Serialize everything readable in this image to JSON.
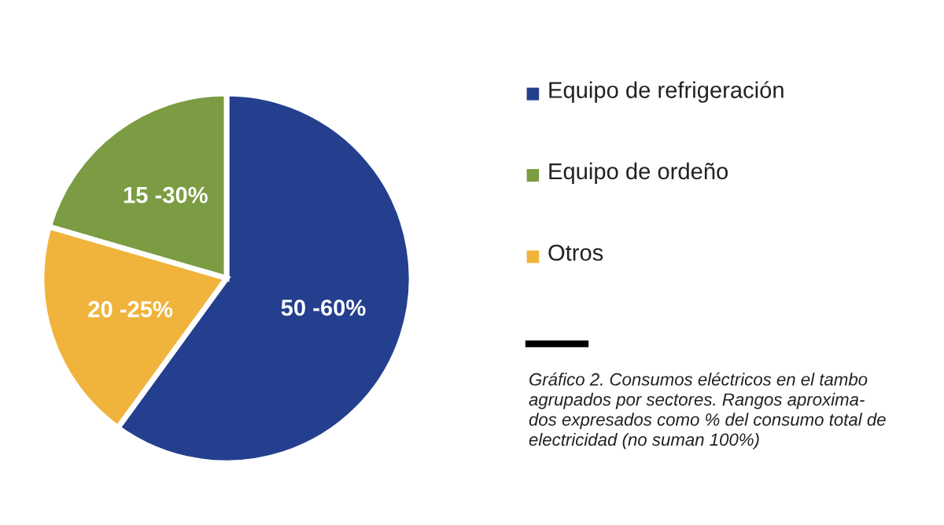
{
  "chart_data": {
    "type": "pie",
    "categories": [
      "Equipo de refrigeración",
      "Equipo de ordeño",
      "Otros"
    ],
    "values": [
      60,
      20.5,
      19.5
    ],
    "colors": [
      "#253f8f",
      "#7b9c42",
      "#f0b43c"
    ],
    "legend": "right",
    "annotations": [
      "50 -60%",
      "15 -30%",
      "20 -25%",
      "Gráfico 2. Consumos eléctricos en el tambo\nagrupados por sectores. Rangos aproxima-\ndos expresados como % del consumo total de\nelectricidad (no suman 100%)"
    ]
  }
}
